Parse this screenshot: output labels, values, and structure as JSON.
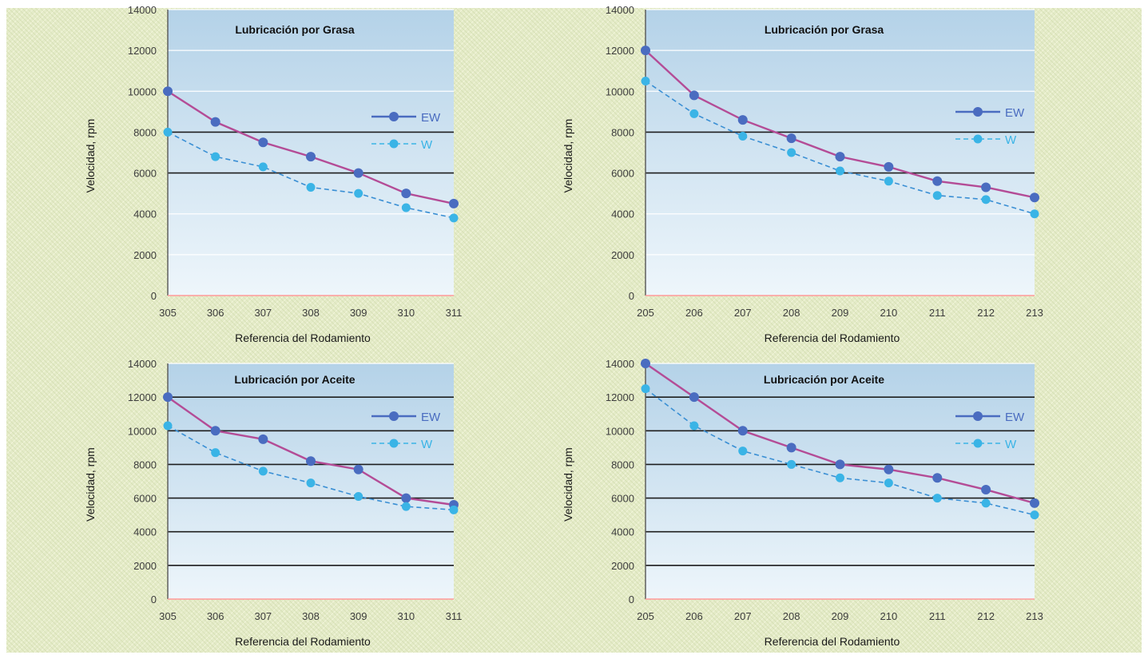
{
  "colors": {
    "ew": "#4a6cc0",
    "w": "#3ab4e6",
    "ew_line": "#b44c96",
    "w_line": "#3a8fd4",
    "plot_top": "#b4d2e8",
    "plot_bottom": "#eef6fb",
    "grid_dark": "#1e1e1e",
    "grid_light": "#ffffff"
  },
  "chart_data": [
    {
      "type": "line",
      "title": "Lubricación por Grasa",
      "xlabel": "Referencia del Rodamiento",
      "ylabel": "Velocidad, rpm",
      "categories": [
        "305",
        "306",
        "307",
        "308",
        "309",
        "310",
        "311"
      ],
      "yticks": [
        "0",
        "2000",
        "4000",
        "6000",
        "8000",
        "10000",
        "12000",
        "14000"
      ],
      "ylim": [
        0,
        14000
      ],
      "dark_gridlines": [
        6000,
        8000
      ],
      "legend_position": "top-right",
      "series": [
        {
          "name": "EW",
          "values": [
            10000,
            8500,
            7500,
            6800,
            6000,
            5000,
            4500
          ]
        },
        {
          "name": "W",
          "values": [
            8000,
            6800,
            6300,
            5300,
            5000,
            4300,
            3800
          ]
        }
      ]
    },
    {
      "type": "line",
      "title": "Lubricación por Grasa",
      "xlabel": "Referencia del Rodamiento",
      "ylabel": "Velocidad, rpm",
      "categories": [
        "205",
        "206",
        "207",
        "208",
        "209",
        "210",
        "211",
        "212",
        "213"
      ],
      "yticks": [
        "0",
        "2000",
        "4000",
        "6000",
        "8000",
        "10000",
        "12000",
        "14000"
      ],
      "ylim": [
        0,
        14000
      ],
      "dark_gridlines": [
        6000,
        8000
      ],
      "legend_position": "top-right",
      "series": [
        {
          "name": "EW",
          "values": [
            12000,
            9800,
            8600,
            7700,
            6800,
            6300,
            5600,
            5300,
            4800
          ]
        },
        {
          "name": "W",
          "values": [
            10500,
            8900,
            7800,
            7000,
            6100,
            5600,
            4900,
            4700,
            4000
          ]
        }
      ]
    },
    {
      "type": "line",
      "title": "Lubricación por Aceite",
      "xlabel": "Referencia del Rodamiento",
      "ylabel": "Velocidad, rpm",
      "categories": [
        "305",
        "306",
        "307",
        "308",
        "309",
        "310",
        "311"
      ],
      "yticks": [
        "0",
        "2000",
        "4000",
        "6000",
        "8000",
        "10000",
        "12000",
        "14000"
      ],
      "ylim": [
        0,
        14000
      ],
      "dark_gridlines": [
        2000,
        4000,
        6000,
        8000,
        10000,
        12000
      ],
      "legend_position": "top-right",
      "series": [
        {
          "name": "EW",
          "values": [
            12000,
            10000,
            9500,
            8200,
            7700,
            6000,
            5600
          ]
        },
        {
          "name": "W",
          "values": [
            10300,
            8700,
            7600,
            6900,
            6100,
            5500,
            5300
          ]
        }
      ]
    },
    {
      "type": "line",
      "title": "Lubricación por Aceite",
      "xlabel": "Referencia del Rodamiento",
      "ylabel": "Velocidad, rpm",
      "categories": [
        "205",
        "206",
        "207",
        "208",
        "209",
        "210",
        "211",
        "212",
        "213"
      ],
      "yticks": [
        "0",
        "2000",
        "4000",
        "6000",
        "8000",
        "10000",
        "12000",
        "14000"
      ],
      "ylim": [
        0,
        14000
      ],
      "dark_gridlines": [
        2000,
        4000,
        6000,
        8000,
        10000,
        12000
      ],
      "legend_position": "top-right",
      "series": [
        {
          "name": "EW",
          "values": [
            14000,
            12000,
            10000,
            9000,
            8000,
            7700,
            7200,
            6500,
            5700
          ]
        },
        {
          "name": "W",
          "values": [
            12500,
            10300,
            8800,
            8000,
            7200,
            6900,
            6000,
            5700,
            5000
          ]
        }
      ]
    }
  ]
}
